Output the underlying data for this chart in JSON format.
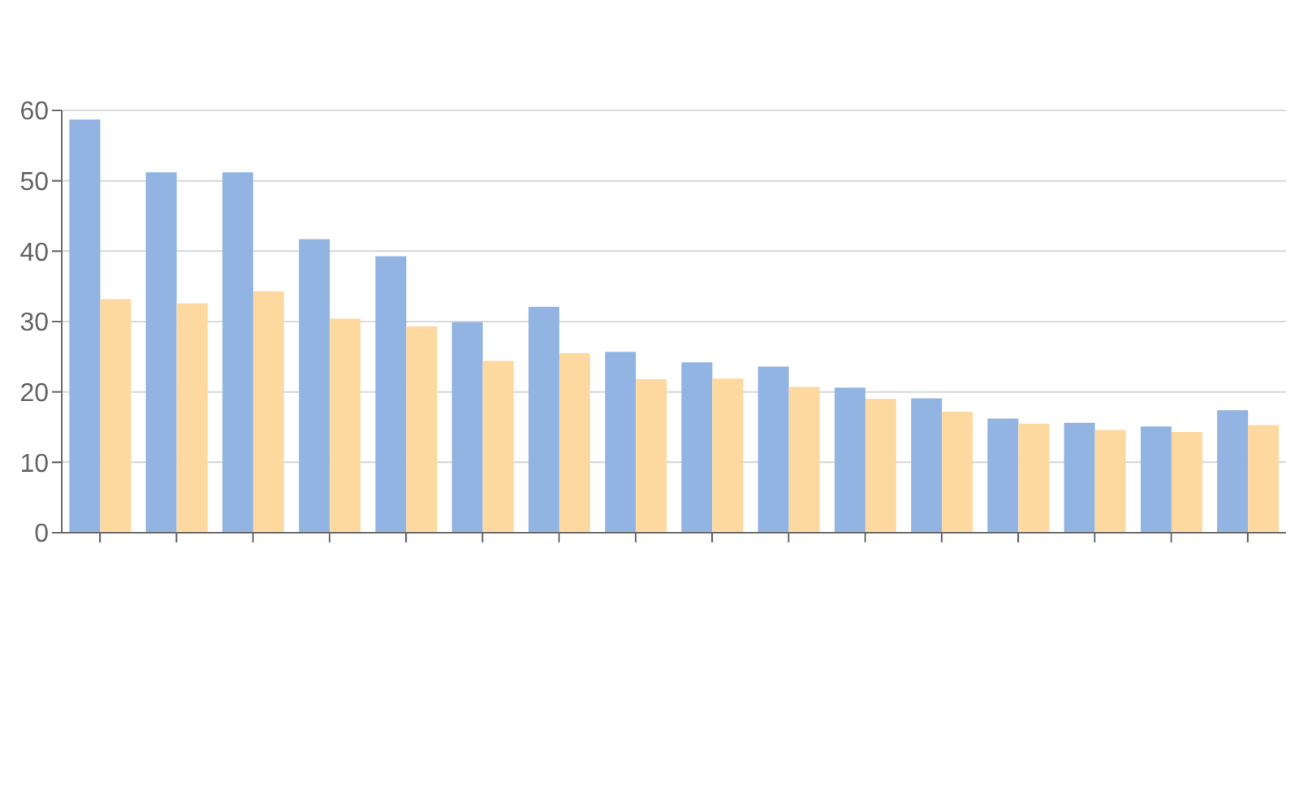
{
  "chart_data": {
    "type": "bar",
    "categories": [
      null,
      null,
      null,
      null,
      null,
      null,
      null,
      null,
      null,
      null,
      null,
      null,
      null,
      null,
      null,
      null
    ],
    "series": [
      {
        "color": "#92b4e3",
        "values": [
          58.7,
          51.2,
          51.2,
          41.7,
          39.3,
          29.9,
          32.1,
          25.7,
          24.2,
          23.6,
          20.6,
          19.1,
          16.2,
          15.6,
          15.1,
          17.4
        ]
      },
      {
        "color": "#fdd9a0",
        "values": [
          33.2,
          32.6,
          34.3,
          30.4,
          29.3,
          24.4,
          25.5,
          21.8,
          21.9,
          20.7,
          19.0,
          17.2,
          15.5,
          14.6,
          14.3,
          15.3
        ]
      }
    ],
    "ylim": [
      0,
      60
    ],
    "yticks": [
      0,
      10,
      20,
      30,
      40,
      50,
      60
    ],
    "grid": "y"
  }
}
